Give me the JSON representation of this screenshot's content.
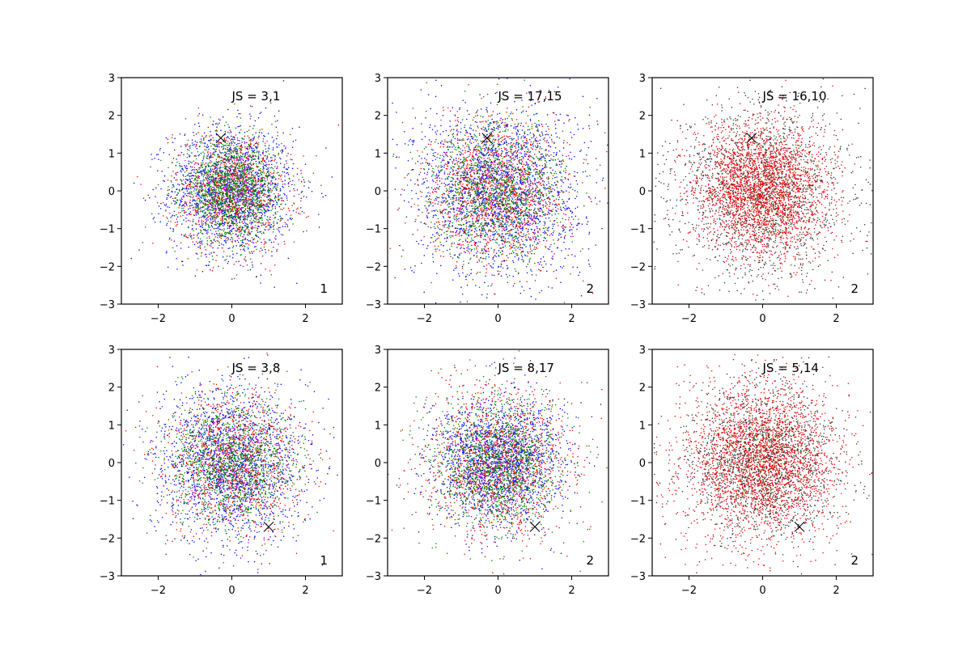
{
  "chart_data": [
    {
      "type": "scatter",
      "panel": "top-left",
      "annotation": "JS = 3,1",
      "corner_label": "1",
      "marker": {
        "x": -0.3,
        "y": 1.4,
        "symbol": "x",
        "color": "#000000"
      },
      "xlim": [
        -3,
        3
      ],
      "ylim": [
        -3,
        3
      ],
      "xticks": [
        "−2",
        "0",
        "2"
      ],
      "yticks": [
        "3",
        "2",
        "1",
        "0",
        "−1",
        "−2",
        "−3"
      ],
      "series": [
        {
          "color": "#0000ff",
          "sigma": 0.85,
          "count": 1700
        },
        {
          "color": "#ff0000",
          "sigma": 0.8,
          "count": 1000
        },
        {
          "color": "#008000",
          "sigma": 0.65,
          "count": 1500
        },
        {
          "color": "#ff00ff",
          "sigma": 0.5,
          "count": 120
        }
      ]
    },
    {
      "type": "scatter",
      "panel": "top-middle",
      "annotation": "JS = 17,15",
      "corner_label": "2",
      "marker": {
        "x": -0.3,
        "y": 1.4,
        "symbol": "x",
        "color": "#000000"
      },
      "xlim": [
        -3,
        3
      ],
      "ylim": [
        -3,
        3
      ],
      "xticks": [
        "−2",
        "0",
        "2"
      ],
      "yticks": [
        "3",
        "2",
        "1",
        "0",
        "−1",
        "−2",
        "−3"
      ],
      "series": [
        {
          "color": "#0000ff",
          "sigma": 1.15,
          "count": 2000
        },
        {
          "color": "#ff0000",
          "sigma": 0.95,
          "count": 1400
        },
        {
          "color": "#008000",
          "sigma": 0.9,
          "count": 1300
        },
        {
          "color": "#ff00ff",
          "sigma": 0.6,
          "count": 80
        }
      ]
    },
    {
      "type": "scatter",
      "panel": "top-right",
      "annotation": "JS = 16,10",
      "corner_label": "2",
      "marker": {
        "x": -0.3,
        "y": 1.4,
        "symbol": "x",
        "color": "#000000"
      },
      "xlim": [
        -3,
        3
      ],
      "ylim": [
        -3,
        3
      ],
      "xticks": [
        "−2",
        "0",
        "2"
      ],
      "yticks": [
        "3",
        "2",
        "1",
        "0",
        "−1",
        "−2",
        "−3"
      ],
      "series": [
        {
          "color": "#333333",
          "sigma": 1.15,
          "count": 2000
        },
        {
          "color": "#ff0000",
          "sigma": 0.9,
          "count": 2500
        }
      ]
    },
    {
      "type": "scatter",
      "panel": "bottom-left",
      "annotation": "JS = 3,8",
      "corner_label": "1",
      "marker": {
        "x": 1.0,
        "y": -1.7,
        "symbol": "x",
        "color": "#000000"
      },
      "xlim": [
        -3,
        3
      ],
      "ylim": [
        -3,
        3
      ],
      "xticks": [
        "−2",
        "0",
        "2"
      ],
      "yticks": [
        "3",
        "2",
        "1",
        "0",
        "−1",
        "−2",
        "−3"
      ],
      "series": [
        {
          "color": "#0000ff",
          "sigma": 1.0,
          "count": 1800
        },
        {
          "color": "#ff0000",
          "sigma": 0.95,
          "count": 1100
        },
        {
          "color": "#008000",
          "sigma": 0.85,
          "count": 1300
        },
        {
          "color": "#ff00ff",
          "sigma": 0.6,
          "count": 100
        }
      ]
    },
    {
      "type": "scatter",
      "panel": "bottom-middle",
      "annotation": "JS = 8,17",
      "corner_label": "2",
      "marker": {
        "x": 1.0,
        "y": -1.7,
        "symbol": "x",
        "color": "#000000"
      },
      "xlim": [
        -3,
        3
      ],
      "ylim": [
        -3,
        3
      ],
      "xticks": [
        "−2",
        "0",
        "2"
      ],
      "yticks": [
        "3",
        "2",
        "1",
        "0",
        "−1",
        "−2",
        "−3"
      ],
      "series": [
        {
          "color": "#0000ff",
          "sigma": 0.85,
          "count": 1800
        },
        {
          "color": "#ff0000",
          "sigma": 1.0,
          "count": 1300
        },
        {
          "color": "#008000",
          "sigma": 0.85,
          "count": 1400
        },
        {
          "color": "#ff00ff",
          "sigma": 0.6,
          "count": 80
        }
      ]
    },
    {
      "type": "scatter",
      "panel": "bottom-right",
      "annotation": "JS = 5,14",
      "corner_label": "2",
      "marker": {
        "x": 1.0,
        "y": -1.7,
        "symbol": "x",
        "color": "#000000"
      },
      "xlim": [
        -3,
        3
      ],
      "ylim": [
        -3,
        3
      ],
      "xticks": [
        "−2",
        "0",
        "2"
      ],
      "yticks": [
        "3",
        "2",
        "1",
        "0",
        "−1",
        "−2",
        "−3"
      ],
      "series": [
        {
          "color": "#333333",
          "sigma": 1.0,
          "count": 2000
        },
        {
          "color": "#ff0000",
          "sigma": 1.05,
          "count": 2500
        }
      ]
    }
  ]
}
